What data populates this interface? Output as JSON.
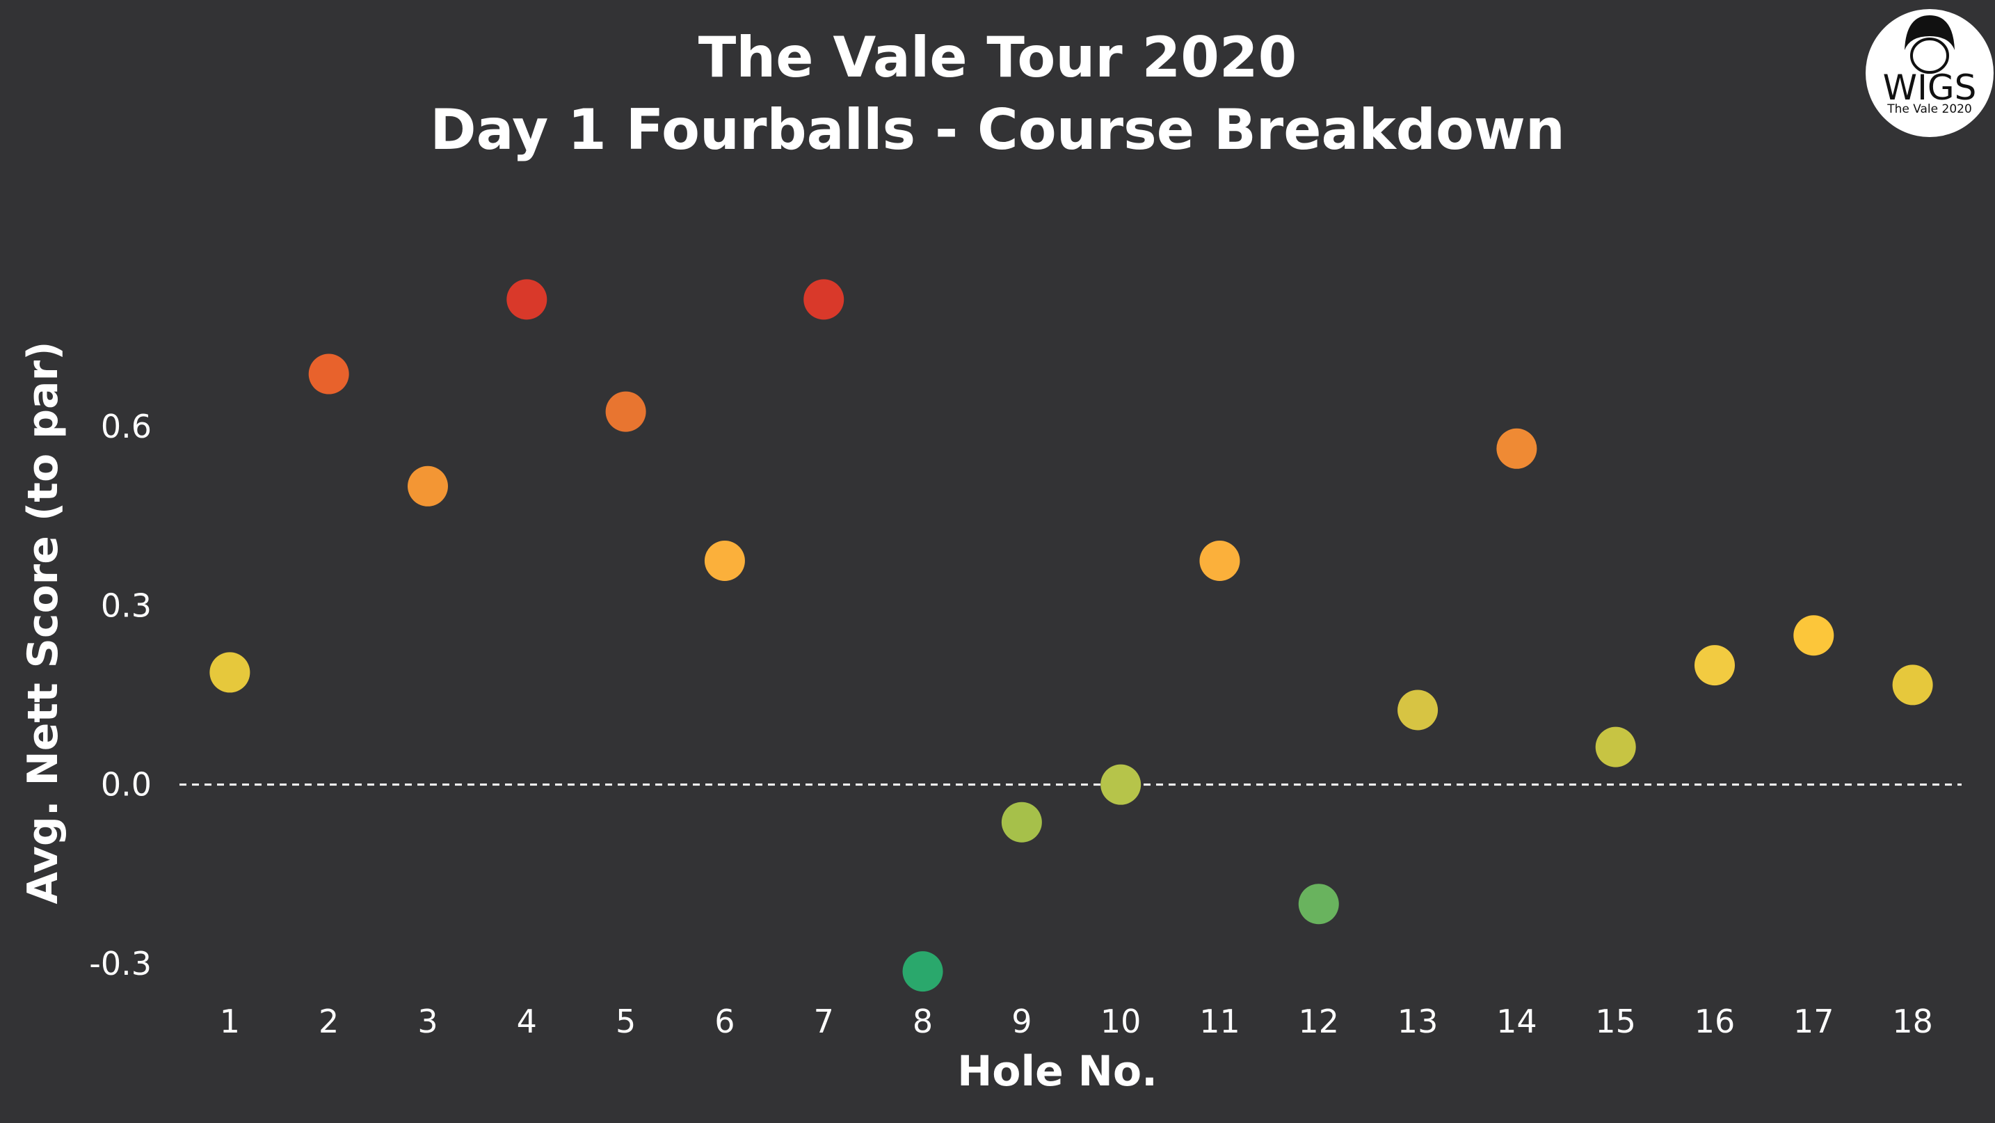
{
  "chart_data": {
    "type": "scatter",
    "title": "The Vale Tour 2020",
    "subtitle": "Day 1 Fourballs - Course Breakdown",
    "xlabel": "Hole No.",
    "ylabel": "Avg. Nett Score (to par)",
    "x": [
      1,
      2,
      3,
      4,
      5,
      6,
      7,
      8,
      9,
      10,
      11,
      12,
      13,
      14,
      15,
      16,
      17,
      18
    ],
    "y": [
      0.188,
      0.688,
      0.5,
      0.813,
      0.625,
      0.375,
      0.813,
      -0.313,
      -0.063,
      0.0,
      0.375,
      -0.2,
      0.125,
      0.563,
      0.063,
      0.2,
      0.25,
      0.167
    ],
    "colors": [
      "#e6c83c",
      "#e8622c",
      "#f39634",
      "#d9392a",
      "#e87530",
      "#fbb03b",
      "#d9392a",
      "#2aa86c",
      "#a6c04a",
      "#b6c44a",
      "#fbb03b",
      "#69b35e",
      "#d7c443",
      "#ef8a34",
      "#c7c443",
      "#f2cb41",
      "#fcc63a",
      "#e6c83c"
    ],
    "xticks": [
      "1",
      "2",
      "3",
      "4",
      "5",
      "6",
      "7",
      "8",
      "9",
      "10",
      "11",
      "12",
      "13",
      "14",
      "15",
      "16",
      "17",
      "18"
    ],
    "yticks": [
      "-0.3",
      "0.0",
      "0.3",
      "0.6"
    ],
    "ytick_values": [
      -0.3,
      0.0,
      0.3,
      0.6
    ],
    "xlim": [
      0.4,
      18.6
    ],
    "ylim": [
      -0.37,
      0.93
    ],
    "grid": false,
    "reference_line": 0.0
  },
  "logo": {
    "text": "WIGS",
    "subtext": "The Vale 2020"
  }
}
